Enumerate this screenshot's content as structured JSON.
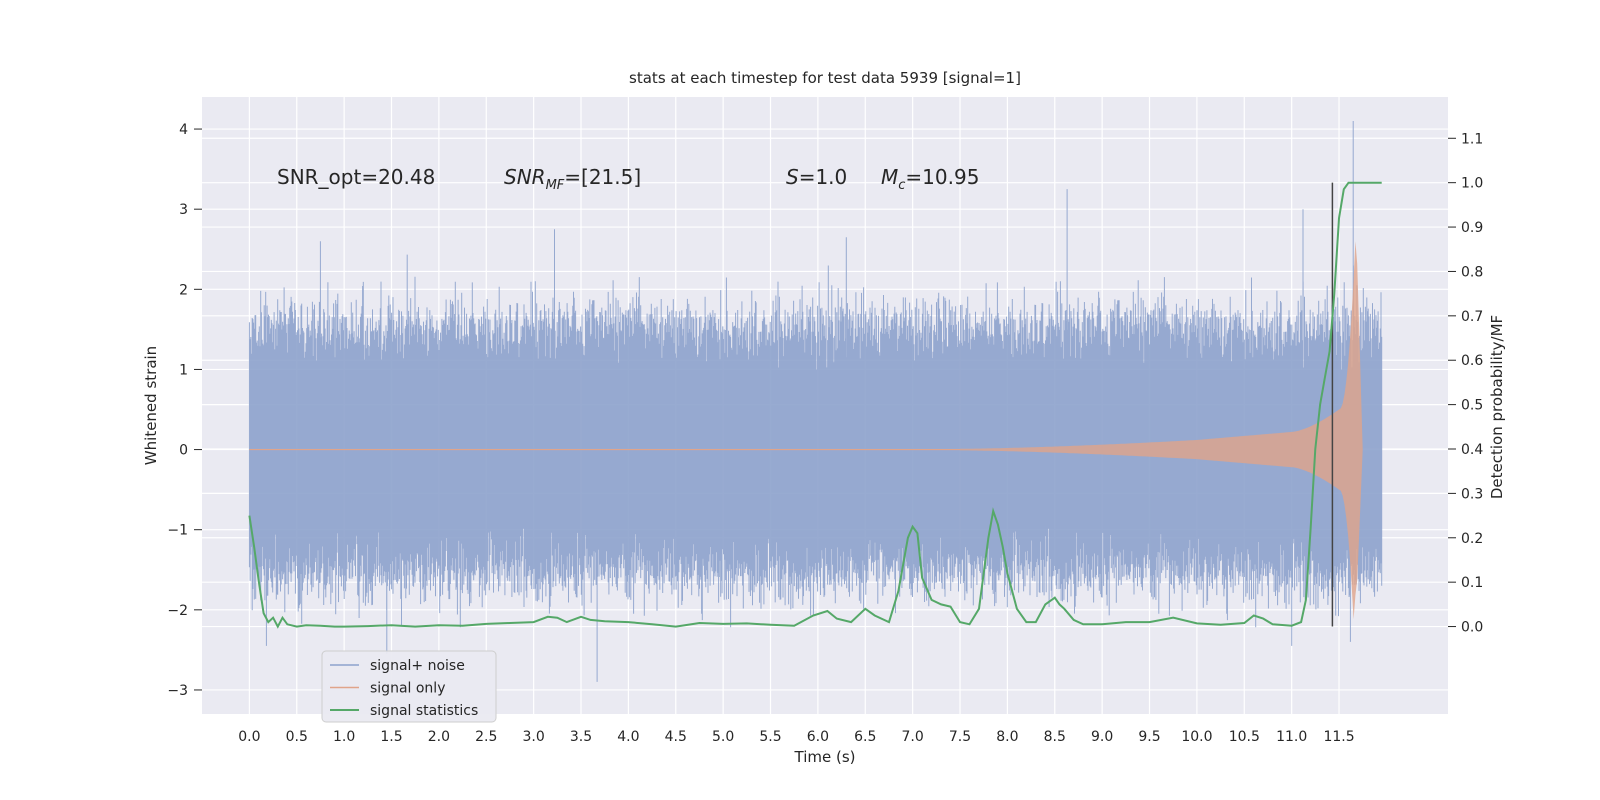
{
  "chart_data": {
    "type": "line",
    "title": "stats at each timestep for test data 5939 [signal=1]",
    "xlabel": "Time (s)",
    "ylabel_left": "Whitened strain",
    "ylabel_right": "Detection probability/MF",
    "xlim": [
      -0.5,
      12.65
    ],
    "ylim_left": [
      -3.3,
      4.4
    ],
    "ylim_right": [
      -0.197,
      1.193
    ],
    "grid": true,
    "x_ticks": [
      "0.0",
      "0.5",
      "1.0",
      "1.5",
      "2.0",
      "2.5",
      "3.0",
      "3.5",
      "4.0",
      "4.5",
      "5.0",
      "5.5",
      "6.0",
      "6.5",
      "7.0",
      "7.5",
      "8.0",
      "8.5",
      "9.0",
      "9.5",
      "10.0",
      "10.5",
      "11.0",
      "11.5"
    ],
    "y_left_ticks": [
      {
        "v": 4,
        "label": "4"
      },
      {
        "v": 3,
        "label": "3"
      },
      {
        "v": 2,
        "label": "2"
      },
      {
        "v": 1,
        "label": "1"
      },
      {
        "v": 0,
        "label": "0"
      },
      {
        "v": -1,
        "label": "−1"
      },
      {
        "v": -2,
        "label": "−2"
      },
      {
        "v": -3,
        "label": "−3"
      }
    ],
    "y_right_ticks": [
      {
        "v": 0.0,
        "label": "0.0"
      },
      {
        "v": 0.1,
        "label": "0.1"
      },
      {
        "v": 0.2,
        "label": "0.2"
      },
      {
        "v": 0.3,
        "label": "0.3"
      },
      {
        "v": 0.4,
        "label": "0.4"
      },
      {
        "v": 0.5,
        "label": "0.5"
      },
      {
        "v": 0.6,
        "label": "0.6"
      },
      {
        "v": 0.7,
        "label": "0.7"
      },
      {
        "v": 0.8,
        "label": "0.8"
      },
      {
        "v": 0.9,
        "label": "0.9"
      },
      {
        "v": 1.0,
        "label": "1.0"
      },
      {
        "v": 1.1,
        "label": "1.1"
      }
    ],
    "annotations": {
      "snr_opt": "SNR_opt=20.48",
      "snr_mf_main": "SNR",
      "snr_mf_sub": "MF",
      "snr_mf_rest": "=[21.5]",
      "s_main": "S",
      "s_rest": "=1.0",
      "mc_main": "M",
      "mc_sub": "c",
      "mc_rest": "=10.95"
    },
    "legend": {
      "placement": "lower-left",
      "entries": [
        "signal+ noise",
        "signal only",
        "signal statistics"
      ]
    },
    "colors": {
      "noise": "#8da2cc",
      "signal": "#e0a48a",
      "stats": "#55a868",
      "marker": "#444444",
      "plot_bg": "#eaeaf2",
      "grid": "#ffffff"
    },
    "noise_trace": {
      "x_start": 0.0,
      "x_end": 11.95,
      "envelope_mean": 1.55,
      "envelope_std": 0.28,
      "notable_peaks": [
        {
          "x": 0.75,
          "y": 2.6
        },
        {
          "x": 3.22,
          "y": 2.75
        },
        {
          "x": 8.63,
          "y": 3.25
        },
        {
          "x": 11.12,
          "y": 3.0
        },
        {
          "x": 11.65,
          "y": 4.1
        },
        {
          "x": 6.3,
          "y": 2.65
        }
      ],
      "notable_troughs": [
        {
          "x": 0.18,
          "y": -2.45
        },
        {
          "x": 3.67,
          "y": -2.9
        },
        {
          "x": 1.45,
          "y": -2.55
        },
        {
          "x": 11.0,
          "y": -2.45
        },
        {
          "x": 11.62,
          "y": -2.4
        }
      ]
    },
    "signal_trace": {
      "x_start": 7.5,
      "x_merger": 11.68,
      "x_end": 11.75,
      "amplitude_at_start": 0.01,
      "amplitude_at_10": 0.12,
      "amplitude_at_11": 0.22,
      "amplitude_at_11_5": 0.5,
      "peak_amplitude": 2.8
    },
    "stats_series": {
      "x": [
        0.0,
        0.05,
        0.1,
        0.15,
        0.2,
        0.25,
        0.3,
        0.35,
        0.4,
        0.5,
        0.6,
        0.75,
        0.9,
        1.0,
        1.25,
        1.5,
        1.75,
        2.0,
        2.25,
        2.5,
        2.75,
        3.0,
        3.15,
        3.25,
        3.35,
        3.5,
        3.6,
        3.75,
        4.0,
        4.25,
        4.5,
        4.75,
        5.0,
        5.25,
        5.5,
        5.75,
        5.95,
        6.1,
        6.2,
        6.35,
        6.5,
        6.6,
        6.75,
        6.85,
        6.95,
        7.0,
        7.05,
        7.1,
        7.2,
        7.3,
        7.4,
        7.5,
        7.6,
        7.7,
        7.8,
        7.85,
        7.9,
        7.95,
        8.0,
        8.1,
        8.2,
        8.3,
        8.4,
        8.5,
        8.55,
        8.6,
        8.7,
        8.8,
        9.0,
        9.25,
        9.5,
        9.75,
        10.0,
        10.25,
        10.5,
        10.6,
        10.7,
        10.8,
        11.0,
        11.1,
        11.15,
        11.2,
        11.25,
        11.3,
        11.35,
        11.4,
        11.45,
        11.5,
        11.55,
        11.6,
        11.65,
        11.7,
        11.8,
        11.9,
        11.95
      ],
      "y": [
        0.25,
        0.18,
        0.1,
        0.03,
        0.01,
        0.02,
        0.0,
        0.02,
        0.005,
        0.0,
        0.003,
        0.002,
        0.0,
        0.0,
        0.001,
        0.003,
        0.0,
        0.003,
        0.002,
        0.006,
        0.008,
        0.01,
        0.022,
        0.02,
        0.01,
        0.022,
        0.015,
        0.012,
        0.01,
        0.005,
        0.0,
        0.008,
        0.006,
        0.007,
        0.004,
        0.002,
        0.025,
        0.035,
        0.018,
        0.01,
        0.04,
        0.025,
        0.01,
        0.08,
        0.2,
        0.225,
        0.21,
        0.11,
        0.06,
        0.05,
        0.045,
        0.01,
        0.005,
        0.04,
        0.2,
        0.26,
        0.23,
        0.18,
        0.12,
        0.04,
        0.01,
        0.01,
        0.05,
        0.065,
        0.05,
        0.04,
        0.015,
        0.005,
        0.005,
        0.01,
        0.01,
        0.02,
        0.007,
        0.004,
        0.008,
        0.025,
        0.018,
        0.005,
        0.002,
        0.01,
        0.06,
        0.22,
        0.4,
        0.5,
        0.56,
        0.62,
        0.75,
        0.92,
        0.985,
        1.0,
        1.0,
        1.0,
        1.0,
        1.0,
        1.0
      ]
    },
    "marker_line": {
      "x": 11.43,
      "y_top": 1.0,
      "y_bottom": 0.0
    }
  }
}
